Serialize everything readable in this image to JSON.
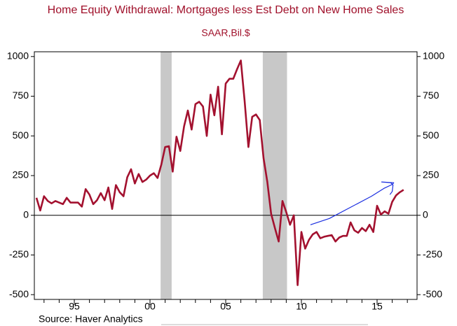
{
  "chart_data": {
    "type": "line",
    "title": "Home Equity Withdrawal: Mortgages less Est Debt on New Home Sales",
    "subtitle": "SAAR,Bil.$",
    "source": "Source:  Haver Analytics",
    "x": [
      1992.5,
      1992.75,
      1993,
      1993.25,
      1993.5,
      1993.75,
      1994,
      1994.25,
      1994.5,
      1994.75,
      1995,
      1995.25,
      1995.5,
      1995.75,
      1996,
      1996.25,
      1996.5,
      1996.75,
      1997,
      1997.25,
      1997.5,
      1997.75,
      1998,
      1998.25,
      1998.5,
      1998.75,
      1999,
      1999.25,
      1999.5,
      1999.75,
      2000,
      2000.25,
      2000.5,
      2000.75,
      2001,
      2001.25,
      2001.5,
      2001.75,
      2002,
      2002.25,
      2002.5,
      2002.75,
      2003,
      2003.25,
      2003.5,
      2003.75,
      2004,
      2004.25,
      2004.5,
      2004.75,
      2005,
      2005.25,
      2005.5,
      2005.75,
      2006,
      2006.25,
      2006.5,
      2006.75,
      2007,
      2007.25,
      2007.5,
      2007.75,
      2008,
      2008.25,
      2008.5,
      2008.75,
      2009,
      2009.25,
      2009.5,
      2009.75,
      2010,
      2010.25,
      2010.5,
      2010.75,
      2011,
      2011.25,
      2011.5,
      2011.75,
      2012,
      2012.25,
      2012.5,
      2012.75,
      2013,
      2013.25,
      2013.5,
      2013.75,
      2014,
      2014.25,
      2014.5,
      2014.75,
      2015,
      2015.25,
      2015.5,
      2015.75,
      2016,
      2016.25,
      2016.5,
      2016.75
    ],
    "series": [
      {
        "color": "#a3112f",
        "values": [
          110,
          30,
          120,
          90,
          75,
          90,
          80,
          70,
          110,
          80,
          80,
          80,
          55,
          165,
          130,
          70,
          95,
          140,
          95,
          175,
          40,
          190,
          145,
          120,
          240,
          290,
          200,
          260,
          210,
          225,
          250,
          265,
          235,
          320,
          430,
          435,
          275,
          495,
          405,
          560,
          660,
          540,
          700,
          715,
          685,
          500,
          760,
          630,
          810,
          510,
          830,
          860,
          860,
          920,
          975,
          720,
          430,
          620,
          635,
          600,
          360,
          210,
          10,
          -80,
          -165,
          90,
          20,
          -60,
          0,
          -440,
          -105,
          -210,
          -155,
          -120,
          -105,
          -145,
          -135,
          -130,
          -125,
          -165,
          -140,
          -130,
          -130,
          -45,
          -95,
          -110,
          -80,
          -100,
          -60,
          -105,
          60,
          5,
          25,
          10,
          85,
          125,
          145,
          160
        ]
      }
    ],
    "annotation_line": {
      "color": "#1a2ee0",
      "x": [
        2010.6,
        2011.85,
        2013.24,
        2014.63,
        2015.46,
        2016.02,
        2016.1,
        2015.3,
        2015.9,
        2016.05,
        2016.0,
        2015.85
      ],
      "y": [
        -60,
        -20,
        50,
        120,
        170,
        195,
        205,
        210,
        205,
        190,
        150,
        130
      ]
    },
    "recessions": [
      [
        2000.7,
        2001.43
      ],
      [
        2007.45,
        2009.05
      ]
    ],
    "recession_color": "#c8c8c8",
    "xlim": [
      1992.36,
      2017.64
    ],
    "xticks": [
      {
        "value": 1995,
        "label": "95"
      },
      {
        "value": 2000,
        "label": "00"
      },
      {
        "value": 2005,
        "label": "05"
      },
      {
        "value": 2010,
        "label": "10"
      },
      {
        "value": 2015,
        "label": "15"
      }
    ],
    "xminorticks": [
      1993,
      1994,
      1995,
      1996,
      1997,
      1998,
      1999,
      2000,
      2001,
      2002,
      2003,
      2004,
      2005,
      2006,
      2007,
      2008,
      2009,
      2010,
      2011,
      2012,
      2013,
      2014,
      2015,
      2016,
      2017
    ],
    "ylim": [
      -530,
      1030
    ],
    "yticks": [
      -500,
      -250,
      0,
      250,
      500,
      750,
      1000
    ],
    "y2lim": [
      -530,
      1030
    ],
    "y2ticks": [
      -500,
      -250,
      0,
      250,
      500,
      750,
      1000
    ],
    "zero_line": 0
  }
}
